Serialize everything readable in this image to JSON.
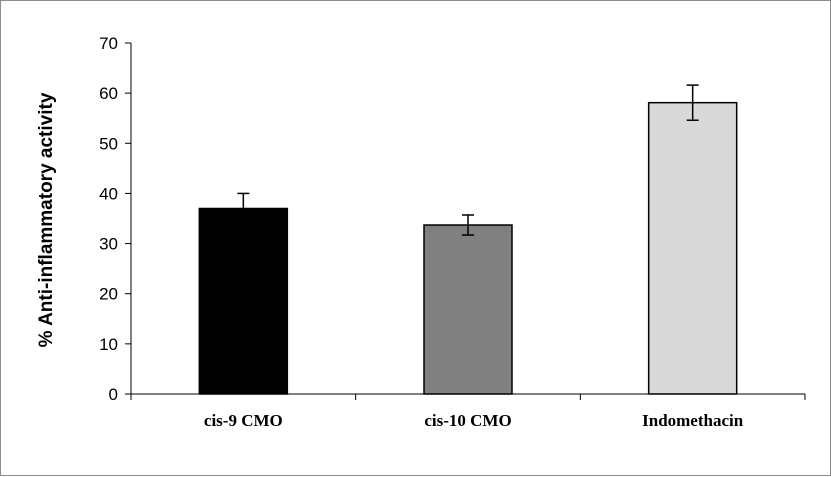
{
  "chart_data": {
    "type": "bar",
    "title": "",
    "xlabel": "",
    "ylabel": "% Anti-inflammatory activity",
    "ylim": [
      0,
      70
    ],
    "yticks": [
      0,
      10,
      20,
      30,
      40,
      50,
      60,
      70
    ],
    "grid": false,
    "legend": "none",
    "categories": [
      "cis-9 CMO",
      "cis-10 CMO",
      "Indomethacin"
    ],
    "values": [
      37,
      33.7,
      58.1
    ],
    "error_bars": [
      3,
      2,
      3.5
    ],
    "colors": [
      "#000000",
      "#808080",
      "#d9d9d9"
    ]
  }
}
